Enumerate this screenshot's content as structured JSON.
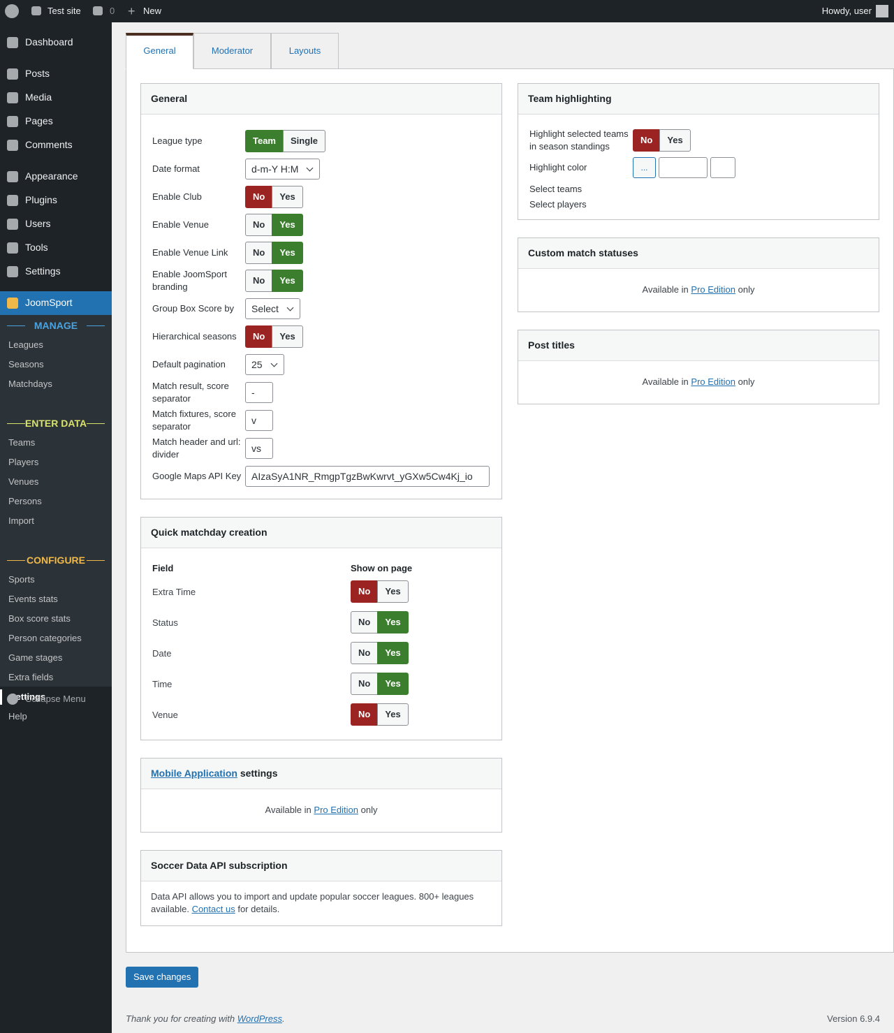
{
  "admin_bar": {
    "site": "Test site",
    "comments": "0",
    "new": "New",
    "howdy": "Howdy, user"
  },
  "menu": {
    "items": [
      "Dashboard",
      "Posts",
      "Media",
      "Pages",
      "Comments",
      "Appearance",
      "Plugins",
      "Users",
      "Tools",
      "Settings"
    ],
    "active": "JoomSport",
    "groups": [
      {
        "title": "MANAGE",
        "color": "#4aa3df",
        "items": [
          "Leagues",
          "Seasons",
          "Matchdays"
        ]
      },
      {
        "title": "ENTER DATA",
        "color": "#d9e36b",
        "items": [
          "Teams",
          "Players",
          "Venues",
          "Persons",
          "Import"
        ]
      },
      {
        "title": "CONFIGURE",
        "color": "#f0b849",
        "items": [
          "Sports",
          "Events stats",
          "Box score stats",
          "Person categories",
          "Game stages",
          "Extra fields",
          "Settings",
          "Help"
        ]
      }
    ],
    "current": "Settings",
    "collapse": "Collapse Menu"
  },
  "tabs": {
    "items": [
      "General",
      "Moderator",
      "Layouts"
    ],
    "active": 0
  },
  "general": {
    "title": "General",
    "rows": [
      {
        "label": "League type",
        "control": "choice",
        "options": [
          "Team",
          "Single"
        ],
        "selected": 0
      },
      {
        "label": "Date format",
        "control": "select",
        "value": "d-m-Y H:M"
      },
      {
        "label": "Enable Club",
        "control": "switch",
        "options": [
          "No",
          "Yes"
        ],
        "selected": 0
      },
      {
        "label": "Enable Venue",
        "control": "switch",
        "options": [
          "No",
          "Yes"
        ],
        "selected": 1
      },
      {
        "label": "Enable Venue Link",
        "control": "switch",
        "options": [
          "No",
          "Yes"
        ],
        "selected": 1
      },
      {
        "label": "Enable JoomSport branding",
        "control": "switch",
        "options": [
          "No",
          "Yes"
        ],
        "selected": 1
      },
      {
        "label": "Group Box Score by",
        "control": "select",
        "value": "Select"
      },
      {
        "label": "Hierarchical seasons",
        "control": "switch",
        "options": [
          "No",
          "Yes"
        ],
        "selected": 0
      },
      {
        "label": "Default pagination",
        "control": "select",
        "value": "25"
      },
      {
        "label": "Match result, score separator",
        "control": "input",
        "value": "-"
      },
      {
        "label": "Match fixtures, score separator",
        "control": "input",
        "value": "v"
      },
      {
        "label": "Match header and url: divider",
        "control": "input",
        "value": "vs"
      },
      {
        "label": "Google Maps API Key",
        "control": "wide-input",
        "value": "AIzaSyA1NR_RmgpTgzBwKwrvt_yGXw5Cw4Kj_io"
      }
    ]
  },
  "quick_matchday": {
    "title": "Quick matchday creation",
    "columns": [
      "Field",
      "Show on page"
    ],
    "rows": [
      {
        "label": "Extra Time",
        "options": [
          "No",
          "Yes"
        ],
        "selected": 0
      },
      {
        "label": "Status",
        "options": [
          "No",
          "Yes"
        ],
        "selected": 1
      },
      {
        "label": "Date",
        "options": [
          "No",
          "Yes"
        ],
        "selected": 1
      },
      {
        "label": "Time",
        "options": [
          "No",
          "Yes"
        ],
        "selected": 1
      },
      {
        "label": "Venue",
        "options": [
          "No",
          "Yes"
        ],
        "selected": 0
      }
    ]
  },
  "mobile_app": {
    "title_link": "Mobile Application",
    "title_rest": "settings",
    "text": "Available in",
    "link": "Pro Edition",
    "after": "only"
  },
  "soccer_api": {
    "title": "Soccer Data API subscription",
    "text": "Data API allows you to import and update popular soccer leagues. 800+ leagues available.",
    "link": "Contact us",
    "after": "for details."
  },
  "team_highlighting": {
    "title": "Team highlighting",
    "rows": [
      {
        "label": "Highlight selected teams in season standings",
        "control": "switch",
        "options": [
          "No",
          "Yes"
        ],
        "selected": 0
      },
      {
        "label": "Highlight color",
        "control": "color",
        "button": "..."
      },
      {
        "label": "Select teams",
        "control": "none"
      },
      {
        "label": "Select players",
        "control": "none"
      }
    ]
  },
  "custom_statuses": {
    "title": "Custom match statuses",
    "text": "Available in",
    "link": "Pro Edition",
    "after": "only"
  },
  "post_titles": {
    "title": "Post titles",
    "text": "Available in",
    "link": "Pro Edition",
    "after": "only"
  },
  "save": "Save changes",
  "footer": {
    "text": "Thank you for creating with",
    "link": "WordPress",
    "after": ".",
    "version": "Version 6.9.4"
  }
}
